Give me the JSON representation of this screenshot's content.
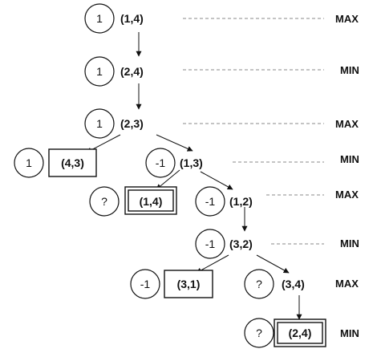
{
  "nodes": [
    {
      "id": "n1",
      "value": "1",
      "state": "(1,4)"
    },
    {
      "id": "n2",
      "value": "1",
      "state": "(2,4)"
    },
    {
      "id": "n3",
      "value": "1",
      "state": "(2,3)"
    },
    {
      "id": "n4",
      "value": "1",
      "state": "(4,3)"
    },
    {
      "id": "n5",
      "value": "-1",
      "state": "(1,3)"
    },
    {
      "id": "n6",
      "value": "?",
      "state": "(1,4)"
    },
    {
      "id": "n7",
      "value": "-1",
      "state": "(1,2)"
    },
    {
      "id": "n8",
      "value": "-1",
      "state": "(3,2)"
    },
    {
      "id": "n9",
      "value": "-1",
      "state": "(3,1)"
    },
    {
      "id": "n10",
      "value": "?",
      "state": "(3,4)"
    },
    {
      "id": "n11",
      "value": "?",
      "state": "(2,4)"
    }
  ],
  "levels": [
    {
      "label": "MAX"
    },
    {
      "label": "MIN"
    },
    {
      "label": "MAX"
    },
    {
      "label": "MIN"
    },
    {
      "label": "MAX"
    },
    {
      "label": "MIN"
    },
    {
      "label": "MAX"
    },
    {
      "label": "MIN"
    }
  ],
  "edges": [
    {
      "from": "n1",
      "to": "n2"
    },
    {
      "from": "n2",
      "to": "n3"
    },
    {
      "from": "n3",
      "to": "n4"
    },
    {
      "from": "n3",
      "to": "n5"
    },
    {
      "from": "n5",
      "to": "n6"
    },
    {
      "from": "n5",
      "to": "n7"
    },
    {
      "from": "n7",
      "to": "n8"
    },
    {
      "from": "n8",
      "to": "n9"
    },
    {
      "from": "n8",
      "to": "n10"
    },
    {
      "from": "n10",
      "to": "n11"
    }
  ]
}
